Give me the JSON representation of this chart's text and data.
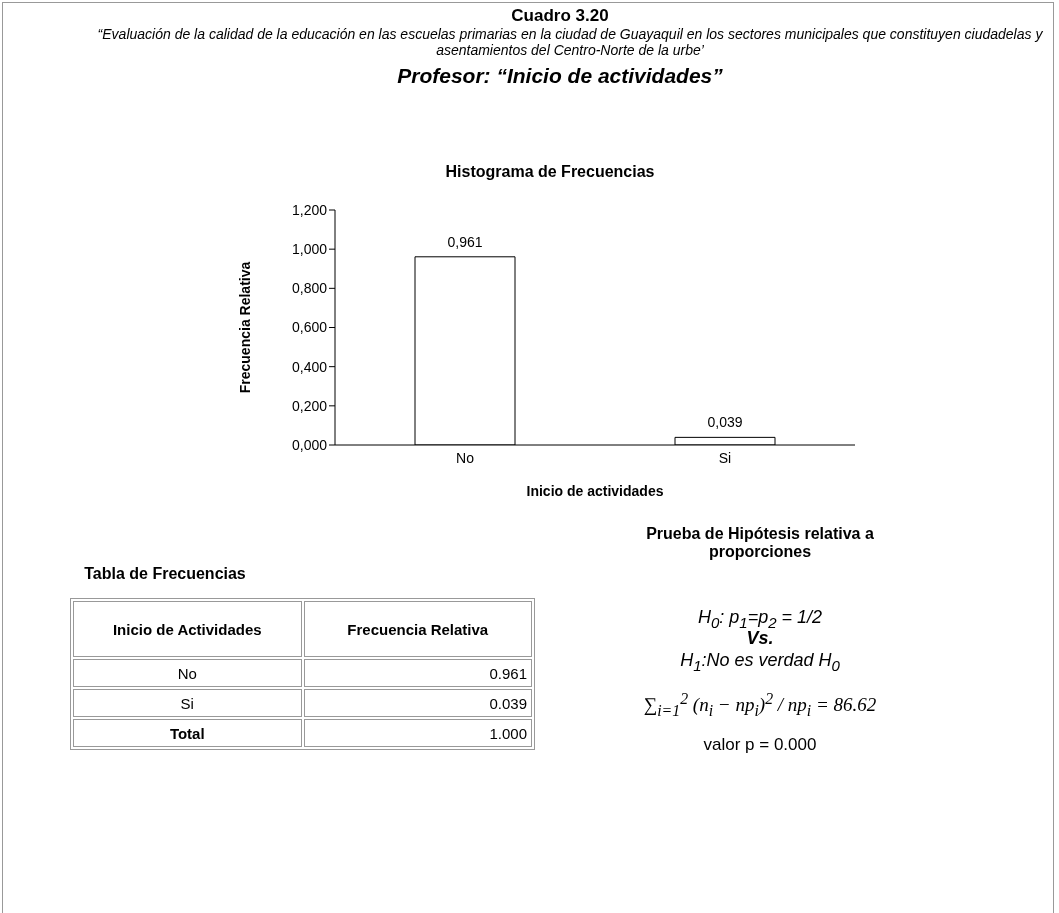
{
  "chart_data": {
    "type": "bar",
    "title": "Histograma de Frecuencias",
    "xlabel": "Inicio de actividades",
    "ylabel": "Frecuencia Relativa",
    "categories": [
      "No",
      "Si"
    ],
    "values": [
      0.961,
      0.039
    ],
    "color": "#ffffff",
    "value_labels": [
      "0,961",
      "0,039"
    ],
    "ylim": [
      0,
      1.2
    ],
    "yticks": [
      {
        "value": 0,
        "label": "0,000"
      },
      {
        "value": 0.2,
        "label": "0,200"
      },
      {
        "value": 0.4,
        "label": "0,400"
      },
      {
        "value": 0.6,
        "label": "0,600"
      },
      {
        "value": 0.8,
        "label": "0,800"
      },
      {
        "value": 1,
        "label": "1,000"
      },
      {
        "value": 1.2,
        "label": "1,200"
      }
    ],
    "grid": false,
    "annotations": [
      "Cuadro 3.20",
      "“Evaluación de la calidad de la educación en las escuelas primarias en la ciudad de Guayaquil en los sectores municipales que constituyen ciudadelas y  asentamientos del Centro-Norte de la urbe’",
      "Profesor:  “Inicio de actividades”",
      "Tabla de Frecuencias",
      "Inicio de Actividades",
      "Frecuencia Relativa",
      "No",
      "0.961",
      "Si",
      "0.039",
      "Total",
      "1.000",
      "Prueba de Hipótesis relativa a proporciones",
      "H$_{0}$:  p$_{1}$=p$_{2}$ = 1/2",
      "Vs.",
      "H$_{1}$:No es verdad H$_{0}$",
      "∑$_{i=1}$$^{2}$ (n$_{i}$ − np$_{i}$)$^{2}$ / np$_{i}$ = 86.62",
      "valor p = 0.000"
    ]
  }
}
